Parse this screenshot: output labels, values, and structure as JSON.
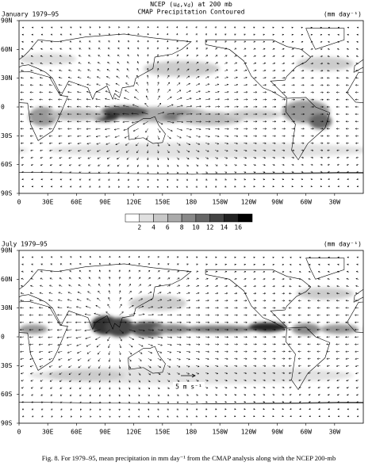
{
  "header": {
    "title": [
      "NCEP (u",
      "d",
      ",v",
      "d",
      ") at 200 mb"
    ],
    "subtitle": "CMAP Precipitation Contoured"
  },
  "panels": [
    {
      "title": "January 1979–95",
      "units": "(mm day⁻¹)"
    },
    {
      "title": "July 1979–95",
      "units": "(mm day⁻¹)"
    }
  ],
  "lat_labels": [
    "90N",
    "60N",
    "30N",
    "0",
    "30S",
    "60S",
    "90S"
  ],
  "lon_labels": [
    "0",
    "30E",
    "60E",
    "90E",
    "120E",
    "150E",
    "180",
    "150W",
    "120W",
    "90W",
    "60W",
    "30W"
  ],
  "colorbar": {
    "labels": [
      2,
      4,
      6,
      8,
      10,
      12,
      14,
      16
    ]
  },
  "reference_vector": "5 m s⁻¹",
  "caption": "Fig. 8. For 1979–95, mean precipitation in mm day⁻¹ from the CMAP analysis along with the NCEP 200-mb"
}
